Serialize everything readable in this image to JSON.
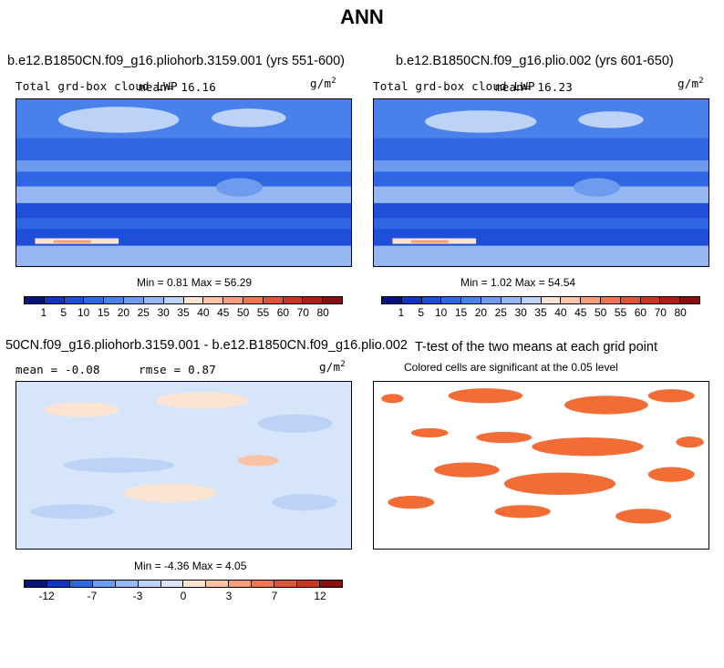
{
  "main_title": "ANN",
  "panels": [
    {
      "title": "b.e12.B1850CN.f09_g16.pliohorb.3159.001 (yrs 551-600)",
      "variable": "Total grd-box cloud LWP",
      "mean_label": "mean=  16.16",
      "units": "g/m",
      "units_exp": "2",
      "minmax": "Min =   0.81 Max =  56.29",
      "colorbar_labels": [
        "1",
        "5",
        "10",
        "15",
        "20",
        "25",
        "30",
        "35",
        "40",
        "45",
        "50",
        "55",
        "60",
        "70",
        "80"
      ],
      "colorbar_colors": [
        "#08127c",
        "#1433c2",
        "#1f4fd8",
        "#2e66e3",
        "#4a80ea",
        "#6e9bee",
        "#95b7f2",
        "#bcd3f7",
        "#fde3d1",
        "#fbc2a4",
        "#f79d79",
        "#ef7654",
        "#e0533a",
        "#c93425",
        "#ae1d19",
        "#861011"
      ]
    },
    {
      "title": "b.e12.B1850CN.f09_g16.plio.002 (yrs 601-650)",
      "variable": "Total grd-box cloud LWP",
      "mean_label": "mean=  16.23",
      "units": "g/m",
      "units_exp": "2",
      "minmax": "Min =   1.02 Max =  54.54",
      "colorbar_labels": [
        "1",
        "5",
        "10",
        "15",
        "20",
        "25",
        "30",
        "35",
        "40",
        "45",
        "50",
        "55",
        "60",
        "70",
        "80"
      ],
      "colorbar_colors": [
        "#08127c",
        "#1433c2",
        "#1f4fd8",
        "#2e66e3",
        "#4a80ea",
        "#6e9bee",
        "#95b7f2",
        "#bcd3f7",
        "#fde3d1",
        "#fbc2a4",
        "#f79d79",
        "#ef7654",
        "#e0533a",
        "#c93425",
        "#ae1d19",
        "#861011"
      ]
    },
    {
      "title": "50CN.f09_g16.pliohorb.3159.001 - b.e12.B1850CN.f09_g16.plio.002",
      "mean_label": "mean =  -0.08",
      "rmse_label": "rmse =   0.87",
      "units": "g/m",
      "units_exp": "2",
      "minmax": "Min =  -4.36 Max =   4.05",
      "colorbar_labels": [
        "-12",
        "-7",
        "-3",
        "0",
        "3",
        "7",
        "12"
      ],
      "colorbar_colors": [
        "#08127c",
        "#1433c2",
        "#2e66e3",
        "#6e9bee",
        "#95b7f2",
        "#bcd3f7",
        "#d7e5fa",
        "#fde3d1",
        "#fbc2a4",
        "#f79d79",
        "#ef7654",
        "#e0533a",
        "#c93425",
        "#861011"
      ]
    },
    {
      "title": "T-test of the two means at each grid point",
      "subtitle": "Colored cells are significant at the 0.05 level",
      "significant_color": "#f26c35"
    }
  ]
}
